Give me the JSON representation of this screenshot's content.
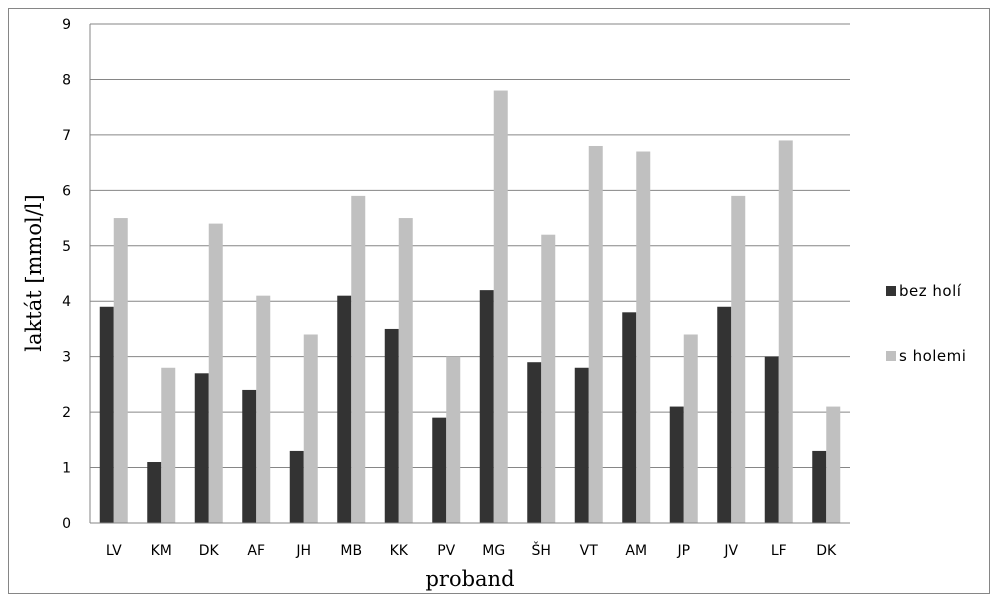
{
  "chart_data": {
    "type": "bar",
    "ylabel": "laktát [mmol/l]",
    "xlabel": "proband",
    "ylim": [
      0,
      9
    ],
    "yticks": [
      0,
      1,
      2,
      3,
      4,
      5,
      6,
      7,
      8,
      9
    ],
    "grid": true,
    "legend_position": "right",
    "categories": [
      "LV",
      "KM",
      "DK",
      "AF",
      "JH",
      "MB",
      "KK",
      "PV",
      "MG",
      "ŠH",
      "VT",
      "AM",
      "JP",
      "JV",
      "LF",
      "DK"
    ],
    "series": [
      {
        "name": "bez holí",
        "color": "#333333",
        "values": [
          3.9,
          1.1,
          2.7,
          2.4,
          1.3,
          4.1,
          3.5,
          1.9,
          4.2,
          2.9,
          2.8,
          3.8,
          2.1,
          3.9,
          3.0,
          1.3
        ]
      },
      {
        "name": "s holemi",
        "color": "#c0c0c0",
        "values": [
          5.5,
          2.8,
          5.4,
          4.1,
          3.4,
          5.9,
          5.5,
          3.0,
          7.8,
          5.2,
          6.8,
          6.7,
          3.4,
          5.9,
          6.9,
          2.1
        ]
      }
    ]
  }
}
